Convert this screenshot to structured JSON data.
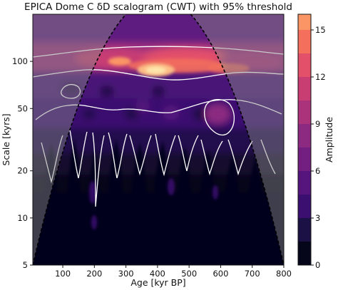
{
  "chart_data": {
    "type": "heatmap",
    "title": "EPICA Dome C δD scalogram (CWT) with 95% threshold",
    "xlabel": "Age [kyr BP]",
    "ylabel": "Scale [kyrs]",
    "xlim": [
      5,
      800
    ],
    "ylim": [
      5,
      200
    ],
    "yscale": "log",
    "x_ticks": [
      "100",
      "200",
      "300",
      "400",
      "500",
      "600",
      "700",
      "800"
    ],
    "x_tick_values": [
      100,
      200,
      300,
      400,
      500,
      600,
      700,
      800
    ],
    "y_ticks": [
      "5",
      "10",
      "20",
      "50",
      "100"
    ],
    "y_tick_values": [
      5,
      10,
      20,
      50,
      100
    ],
    "colorbar": {
      "label": "Amplitude",
      "ticks": [
        "0",
        "3",
        "6",
        "9",
        "12",
        "15"
      ],
      "tick_values": [
        0,
        3,
        6,
        9,
        12,
        15
      ],
      "vmin": 0,
      "vmax": 16,
      "levels": [
        0,
        1.5,
        3,
        4.5,
        6,
        7.5,
        9,
        10.5,
        12,
        13.5,
        15,
        16
      ]
    },
    "colormap": [
      "#06061a",
      "#1c1144",
      "#3b0f70",
      "#56147d",
      "#721f81",
      "#8c2981",
      "#ab337c",
      "#c83e73",
      "#e3506a",
      "#f4705c",
      "#fc9565",
      "#fdbd85",
      "#fde6ab"
    ],
    "grid": false,
    "legend": "none",
    "highlights": [
      {
        "x": 395,
        "scale": 88,
        "amplitude": 15
      },
      {
        "x": 280,
        "scale": 100,
        "amplitude": 10
      }
    ],
    "cone_of_influence": "dashed black parabola; outside region greyed",
    "threshold_contour": "white, 95%"
  }
}
